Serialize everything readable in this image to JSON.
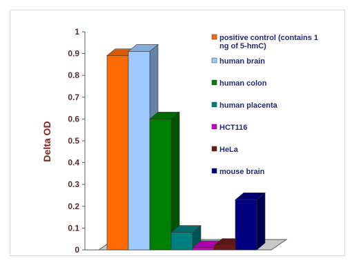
{
  "chart_data": {
    "type": "bar",
    "title": "",
    "xlabel": "",
    "ylabel": "Delta OD",
    "ylim": [
      0,
      1
    ],
    "yticks": [
      "0",
      "0.1",
      "0.2",
      "0.3",
      "0.4",
      "0.5",
      "0.6",
      "0.7",
      "0.8",
      "0.9",
      "1"
    ],
    "grid": false,
    "legend_position": "right",
    "series": [
      {
        "name": "positive control (contains 1 ng of 5-hmC)",
        "value": 0.89,
        "color": "#ff6a00"
      },
      {
        "name": "human brain",
        "value": 0.91,
        "color": "#9cc9ff"
      },
      {
        "name": "human colon",
        "value": 0.6,
        "color": "#008000"
      },
      {
        "name": "human placenta",
        "value": 0.08,
        "color": "#008080"
      },
      {
        "name": "HCT116",
        "value": 0.01,
        "color": "#cc00cc"
      },
      {
        "name": "HeLa",
        "value": 0.02,
        "color": "#6b1a1a"
      },
      {
        "name": "mouse brain",
        "value": 0.23,
        "color": "#000080"
      }
    ]
  }
}
